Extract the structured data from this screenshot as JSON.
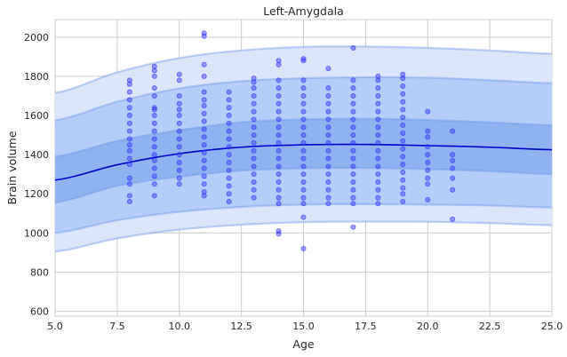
{
  "chart_data": {
    "type": "scatter",
    "title": "Left-Amygdala",
    "xlabel": "Age",
    "ylabel": "Brain volume",
    "xlim": [
      5.0,
      25.0
    ],
    "ylim": [
      575,
      2090
    ],
    "x_ticks": [
      5.0,
      7.5,
      10.0,
      12.5,
      15.0,
      17.5,
      20.0,
      22.5,
      25.0
    ],
    "x_tick_labels": [
      "5.0",
      "7.5",
      "10.0",
      "12.5",
      "15.0",
      "17.5",
      "20.0",
      "22.5",
      "25.0"
    ],
    "y_ticks": [
      600,
      800,
      1000,
      1200,
      1400,
      1600,
      1800,
      2000
    ],
    "y_tick_labels": [
      "600",
      "800",
      "1000",
      "1200",
      "1400",
      "1600",
      "1800",
      "2000"
    ],
    "grid": true,
    "colors": {
      "points": "#3333ff",
      "median_line": "#0000cc",
      "band_outer": "#dbe6fb",
      "band_middle": "#b5cdf8",
      "band_inner": "#8fb2f1",
      "band_edge": "#6f98ea"
    },
    "centiles": {
      "age": [
        5,
        7.5,
        10,
        12.5,
        15,
        17.5,
        20,
        22.5,
        25
      ],
      "median": [
        1270,
        1348,
        1405,
        1438,
        1450,
        1452,
        1446,
        1438,
        1425
      ],
      "inner_lower": [
        1155,
        1240,
        1287,
        1318,
        1330,
        1332,
        1326,
        1315,
        1300
      ],
      "inner_upper": [
        1390,
        1470,
        1525,
        1565,
        1580,
        1583,
        1577,
        1565,
        1550
      ],
      "middle_lower": [
        1000,
        1065,
        1108,
        1133,
        1145,
        1147,
        1145,
        1140,
        1130
      ],
      "middle_upper": [
        1575,
        1670,
        1738,
        1775,
        1790,
        1795,
        1793,
        1780,
        1765
      ],
      "outer_lower": [
        905,
        972,
        1017,
        1042,
        1055,
        1058,
        1057,
        1050,
        1040
      ],
      "outer_upper": [
        1715,
        1820,
        1893,
        1932,
        1950,
        1952,
        1945,
        1932,
        1915
      ]
    },
    "points": [
      [
        8,
        1780
      ],
      [
        8,
        1760
      ],
      [
        8,
        1720
      ],
      [
        8,
        1680
      ],
      [
        8,
        1640
      ],
      [
        8,
        1600
      ],
      [
        8,
        1560
      ],
      [
        8,
        1520
      ],
      [
        8,
        1480
      ],
      [
        8,
        1450
      ],
      [
        8,
        1420
      ],
      [
        8,
        1380
      ],
      [
        8,
        1350
      ],
      [
        8,
        1280
      ],
      [
        8,
        1250
      ],
      [
        8,
        1190
      ],
      [
        8,
        1160
      ],
      [
        9,
        1850
      ],
      [
        9,
        1830
      ],
      [
        9,
        1800
      ],
      [
        9,
        1740
      ],
      [
        9,
        1700
      ],
      [
        9,
        1640
      ],
      [
        9,
        1630
      ],
      [
        9,
        1600
      ],
      [
        9,
        1560
      ],
      [
        9,
        1520
      ],
      [
        9,
        1480
      ],
      [
        9,
        1440
      ],
      [
        9,
        1400
      ],
      [
        9,
        1370
      ],
      [
        9,
        1330
      ],
      [
        9,
        1290
      ],
      [
        9,
        1250
      ],
      [
        9,
        1190
      ],
      [
        10,
        1810
      ],
      [
        10,
        1780
      ],
      [
        10,
        1700
      ],
      [
        10,
        1660
      ],
      [
        10,
        1630
      ],
      [
        10,
        1600
      ],
      [
        10,
        1560
      ],
      [
        10,
        1520
      ],
      [
        10,
        1480
      ],
      [
        10,
        1440
      ],
      [
        10,
        1400
      ],
      [
        10,
        1360
      ],
      [
        10,
        1320
      ],
      [
        10,
        1280
      ],
      [
        10,
        1250
      ],
      [
        11,
        2020
      ],
      [
        11,
        2005
      ],
      [
        11,
        1860
      ],
      [
        11,
        1800
      ],
      [
        11,
        1720
      ],
      [
        11,
        1680
      ],
      [
        11,
        1650
      ],
      [
        11,
        1610
      ],
      [
        11,
        1570
      ],
      [
        11,
        1530
      ],
      [
        11,
        1490
      ],
      [
        11,
        1450
      ],
      [
        11,
        1410
      ],
      [
        11,
        1370
      ],
      [
        11,
        1330
      ],
      [
        11,
        1290
      ],
      [
        11,
        1250
      ],
      [
        11,
        1210
      ],
      [
        11,
        1190
      ],
      [
        12,
        1720
      ],
      [
        12,
        1680
      ],
      [
        12,
        1640
      ],
      [
        12,
        1600
      ],
      [
        12,
        1560
      ],
      [
        12,
        1520
      ],
      [
        12,
        1480
      ],
      [
        12,
        1440
      ],
      [
        12,
        1400
      ],
      [
        12,
        1360
      ],
      [
        12,
        1320
      ],
      [
        12,
        1280
      ],
      [
        12,
        1240
      ],
      [
        12,
        1200
      ],
      [
        12,
        1160
      ],
      [
        13,
        1790
      ],
      [
        13,
        1770
      ],
      [
        13,
        1740
      ],
      [
        13,
        1700
      ],
      [
        13,
        1660
      ],
      [
        13,
        1620
      ],
      [
        13,
        1580
      ],
      [
        13,
        1540
      ],
      [
        13,
        1500
      ],
      [
        13,
        1460
      ],
      [
        13,
        1420
      ],
      [
        13,
        1380
      ],
      [
        13,
        1340
      ],
      [
        13,
        1300
      ],
      [
        13,
        1260
      ],
      [
        13,
        1220
      ],
      [
        13,
        1180
      ],
      [
        14,
        1880
      ],
      [
        14,
        1860
      ],
      [
        14,
        1780
      ],
      [
        14,
        1740
      ],
      [
        14,
        1700
      ],
      [
        14,
        1660
      ],
      [
        14,
        1620
      ],
      [
        14,
        1580
      ],
      [
        14,
        1540
      ],
      [
        14,
        1500
      ],
      [
        14,
        1460
      ],
      [
        14,
        1420
      ],
      [
        14,
        1380
      ],
      [
        14,
        1340
      ],
      [
        14,
        1300
      ],
      [
        14,
        1260
      ],
      [
        14,
        1220
      ],
      [
        14,
        1180
      ],
      [
        14,
        1150
      ],
      [
        14,
        1010
      ],
      [
        14,
        995
      ],
      [
        15,
        1890
      ],
      [
        15,
        1880
      ],
      [
        15,
        1780
      ],
      [
        15,
        1740
      ],
      [
        15,
        1700
      ],
      [
        15,
        1660
      ],
      [
        15,
        1620
      ],
      [
        15,
        1580
      ],
      [
        15,
        1540
      ],
      [
        15,
        1500
      ],
      [
        15,
        1460
      ],
      [
        15,
        1420
      ],
      [
        15,
        1380
      ],
      [
        15,
        1340
      ],
      [
        15,
        1300
      ],
      [
        15,
        1260
      ],
      [
        15,
        1220
      ],
      [
        15,
        1180
      ],
      [
        15,
        1150
      ],
      [
        15,
        1080
      ],
      [
        15,
        920
      ],
      [
        16,
        1840
      ],
      [
        16,
        1740
      ],
      [
        16,
        1700
      ],
      [
        16,
        1660
      ],
      [
        16,
        1620
      ],
      [
        16,
        1580
      ],
      [
        16,
        1540
      ],
      [
        16,
        1500
      ],
      [
        16,
        1460
      ],
      [
        16,
        1420
      ],
      [
        16,
        1380
      ],
      [
        16,
        1340
      ],
      [
        16,
        1300
      ],
      [
        16,
        1260
      ],
      [
        16,
        1220
      ],
      [
        16,
        1180
      ],
      [
        16,
        1150
      ],
      [
        17,
        1945
      ],
      [
        17,
        1780
      ],
      [
        17,
        1740
      ],
      [
        17,
        1700
      ],
      [
        17,
        1660
      ],
      [
        17,
        1620
      ],
      [
        17,
        1580
      ],
      [
        17,
        1540
      ],
      [
        17,
        1500
      ],
      [
        17,
        1460
      ],
      [
        17,
        1420
      ],
      [
        17,
        1380
      ],
      [
        17,
        1340
      ],
      [
        17,
        1300
      ],
      [
        17,
        1260
      ],
      [
        17,
        1220
      ],
      [
        17,
        1180
      ],
      [
        17,
        1150
      ],
      [
        17,
        1030
      ],
      [
        18,
        1800
      ],
      [
        18,
        1780
      ],
      [
        18,
        1740
      ],
      [
        18,
        1700
      ],
      [
        18,
        1660
      ],
      [
        18,
        1620
      ],
      [
        18,
        1580
      ],
      [
        18,
        1540
      ],
      [
        18,
        1500
      ],
      [
        18,
        1460
      ],
      [
        18,
        1420
      ],
      [
        18,
        1380
      ],
      [
        18,
        1340
      ],
      [
        18,
        1300
      ],
      [
        18,
        1260
      ],
      [
        18,
        1220
      ],
      [
        18,
        1180
      ],
      [
        18,
        1150
      ],
      [
        19,
        1810
      ],
      [
        19,
        1790
      ],
      [
        19,
        1750
      ],
      [
        19,
        1710
      ],
      [
        19,
        1670
      ],
      [
        19,
        1630
      ],
      [
        19,
        1590
      ],
      [
        19,
        1550
      ],
      [
        19,
        1510
      ],
      [
        19,
        1470
      ],
      [
        19,
        1430
      ],
      [
        19,
        1390
      ],
      [
        19,
        1350
      ],
      [
        19,
        1310
      ],
      [
        19,
        1270
      ],
      [
        19,
        1230
      ],
      [
        19,
        1200
      ],
      [
        19,
        1160
      ],
      [
        20,
        1620
      ],
      [
        20,
        1520
      ],
      [
        20,
        1490
      ],
      [
        20,
        1440
      ],
      [
        20,
        1400
      ],
      [
        20,
        1360
      ],
      [
        20,
        1320
      ],
      [
        20,
        1280
      ],
      [
        20,
        1250
      ],
      [
        20,
        1170
      ],
      [
        21,
        1520
      ],
      [
        21,
        1400
      ],
      [
        21,
        1370
      ],
      [
        21,
        1330
      ],
      [
        21,
        1280
      ],
      [
        21,
        1220
      ],
      [
        21,
        1070
      ]
    ]
  }
}
